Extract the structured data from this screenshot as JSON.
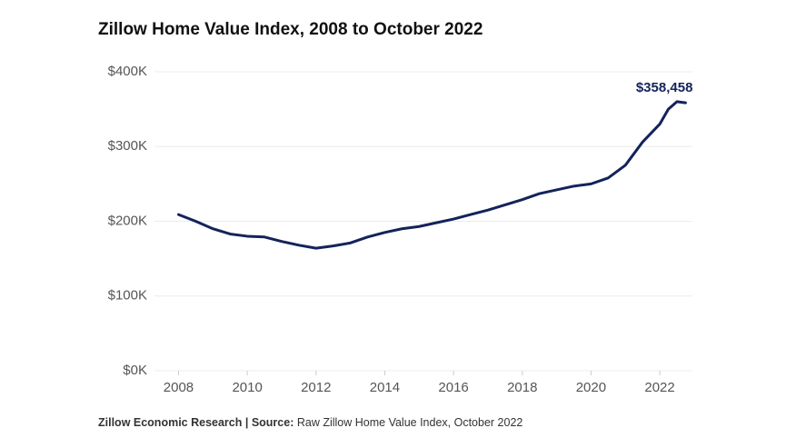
{
  "chart_data": {
    "type": "line",
    "title": "Zillow Home Value Index, 2008 to October 2022",
    "source_label": "Zillow Economic Research | Source:",
    "source": "Raw Zillow Home Value Index, October 2022",
    "x": [
      2008,
      2008.5,
      2009,
      2009.5,
      2010,
      2010.5,
      2011,
      2011.5,
      2012,
      2012.5,
      2013,
      2013.5,
      2014,
      2014.5,
      2015,
      2015.5,
      2016,
      2016.5,
      2017,
      2017.5,
      2018,
      2018.5,
      2019,
      2019.5,
      2020,
      2020.5,
      2021,
      2021.5,
      2022,
      2022.25,
      2022.5,
      2022.75
    ],
    "series": [
      {
        "name": "Zillow Home Value Index",
        "color": "#13235b",
        "values": [
          209000,
          200000,
          190000,
          183000,
          180000,
          179000,
          173000,
          168000,
          164000,
          167000,
          171000,
          179000,
          185000,
          190000,
          193000,
          198000,
          203000,
          209000,
          215000,
          222000,
          229000,
          237000,
          242000,
          247000,
          250000,
          258000,
          275000,
          306000,
          330000,
          350000,
          360000,
          358458
        ],
        "value_labels": [
          null,
          null,
          null,
          null,
          null,
          null,
          null,
          null,
          null,
          null,
          null,
          null,
          null,
          null,
          null,
          null,
          null,
          null,
          null,
          null,
          null,
          null,
          null,
          null,
          null,
          null,
          null,
          null,
          null,
          null,
          null,
          "$358,458"
        ]
      }
    ],
    "xlim": [
      2007.3,
      2022.95
    ],
    "xticks": [
      2008,
      2010,
      2012,
      2014,
      2016,
      2018,
      2020,
      2022
    ],
    "ylim": [
      0,
      400000
    ],
    "yticks": [
      {
        "value": 0,
        "label": "$0K"
      },
      {
        "value": 100000,
        "label": "$100K"
      },
      {
        "value": 200000,
        "label": "$200K"
      },
      {
        "value": 300000,
        "label": "$300K"
      },
      {
        "value": 400000,
        "label": "$400K"
      }
    ],
    "grid": true
  }
}
